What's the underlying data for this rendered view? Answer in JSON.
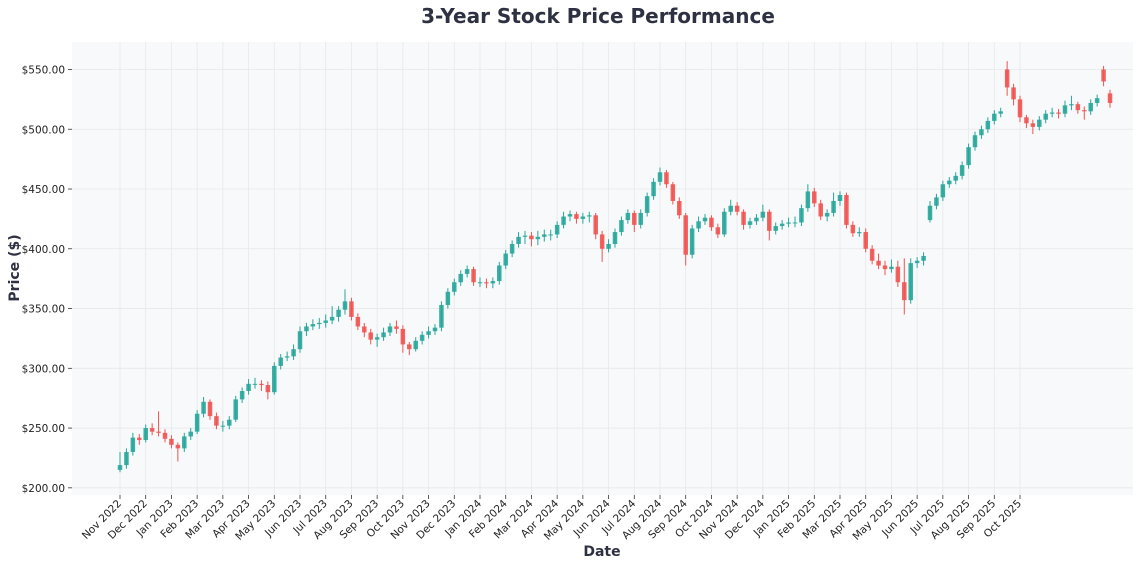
{
  "chart_data": {
    "type": "candlestick",
    "title": "3-Year Stock Price Performance",
    "xlabel": "Date",
    "ylabel": "Price ($)",
    "ylim": [
      194,
      573
    ],
    "grid": true,
    "colors": {
      "up": "#26a69a",
      "down": "#ef5350",
      "plot_bg": "#f8f9fa",
      "title": "#2d3142"
    },
    "y_ticks": [
      {
        "value": 200,
        "label": "$200.00"
      },
      {
        "value": 250,
        "label": "$250.00"
      },
      {
        "value": 300,
        "label": "$300.00"
      },
      {
        "value": 350,
        "label": "$350.00"
      },
      {
        "value": 400,
        "label": "$400.00"
      },
      {
        "value": 450,
        "label": "$450.00"
      },
      {
        "value": 500,
        "label": "$500.00"
      },
      {
        "value": 550,
        "label": "$550.00"
      }
    ],
    "x_ticks": [
      "Nov 2022",
      "Dec 2022",
      "Jan 2023",
      "Feb 2023",
      "Mar 2023",
      "Apr 2023",
      "May 2023",
      "Jun 2023",
      "Jul 2023",
      "Aug 2023",
      "Sep 2023",
      "Oct 2023",
      "Nov 2023",
      "Dec 2023",
      "Jan 2024",
      "Feb 2024",
      "Mar 2024",
      "Apr 2024",
      "May 2024",
      "Jun 2024",
      "Jul 2024",
      "Aug 2024",
      "Sep 2024",
      "Oct 2024",
      "Nov 2024",
      "Dec 2024",
      "Jan 2025",
      "Feb 2025",
      "Mar 2025",
      "Apr 2025",
      "May 2025",
      "Jun 2025",
      "Jul 2025",
      "Aug 2025",
      "Sep 2025",
      "Oct 2025"
    ],
    "candle_fields": [
      "open",
      "high",
      "low",
      "close"
    ],
    "candles": [
      [
        215,
        230,
        213,
        219
      ],
      [
        219,
        233,
        216,
        230
      ],
      [
        230,
        246,
        227,
        242
      ],
      [
        242,
        245,
        236,
        240
      ],
      [
        240,
        253,
        238,
        250
      ],
      [
        250,
        254,
        244,
        247
      ],
      [
        247,
        264,
        243,
        246
      ],
      [
        246,
        249,
        238,
        241
      ],
      [
        241,
        244,
        233,
        236
      ],
      [
        236,
        238,
        222,
        233
      ],
      [
        233,
        246,
        230,
        243
      ],
      [
        243,
        250,
        240,
        247
      ],
      [
        247,
        265,
        245,
        262
      ],
      [
        262,
        276,
        259,
        272
      ],
      [
        272,
        274,
        257,
        260
      ],
      [
        260,
        263,
        249,
        252
      ],
      [
        252,
        256,
        247,
        252
      ],
      [
        252,
        260,
        249,
        257
      ],
      [
        257,
        277,
        255,
        274
      ],
      [
        274,
        284,
        271,
        281
      ],
      [
        281,
        291,
        278,
        287
      ],
      [
        287,
        292,
        283,
        287
      ],
      [
        287,
        290,
        281,
        286
      ],
      [
        286,
        289,
        274,
        280
      ],
      [
        280,
        305,
        278,
        302
      ],
      [
        302,
        312,
        299,
        309
      ],
      [
        309,
        314,
        306,
        310
      ],
      [
        310,
        320,
        307,
        316
      ],
      [
        316,
        335,
        313,
        331
      ],
      [
        331,
        338,
        327,
        335
      ],
      [
        335,
        341,
        332,
        337
      ],
      [
        337,
        342,
        333,
        338
      ],
      [
        338,
        345,
        334,
        340
      ],
      [
        340,
        352,
        337,
        343
      ],
      [
        343,
        352,
        339,
        349
      ],
      [
        349,
        366,
        345,
        356
      ],
      [
        356,
        359,
        340,
        343
      ],
      [
        343,
        346,
        332,
        335
      ],
      [
        335,
        338,
        326,
        330
      ],
      [
        330,
        333,
        320,
        324
      ],
      [
        324,
        329,
        318,
        326
      ],
      [
        326,
        334,
        323,
        330
      ],
      [
        330,
        338,
        327,
        335
      ],
      [
        335,
        340,
        329,
        333
      ],
      [
        333,
        336,
        313,
        320
      ],
      [
        320,
        322,
        311,
        316
      ],
      [
        316,
        326,
        314,
        323
      ],
      [
        323,
        331,
        320,
        328
      ],
      [
        328,
        335,
        325,
        331
      ],
      [
        331,
        337,
        328,
        334
      ],
      [
        334,
        356,
        331,
        353
      ],
      [
        353,
        367,
        350,
        364
      ],
      [
        364,
        375,
        361,
        372
      ],
      [
        372,
        382,
        369,
        379
      ],
      [
        379,
        386,
        376,
        383
      ],
      [
        383,
        385,
        369,
        372
      ],
      [
        372,
        376,
        368,
        372
      ],
      [
        372,
        375,
        367,
        371
      ],
      [
        371,
        376,
        367,
        373
      ],
      [
        373,
        389,
        370,
        386
      ],
      [
        386,
        399,
        383,
        396
      ],
      [
        396,
        407,
        393,
        404
      ],
      [
        404,
        414,
        401,
        410
      ],
      [
        410,
        415,
        404,
        411
      ],
      [
        411,
        414,
        402,
        408
      ],
      [
        408,
        415,
        403,
        410
      ],
      [
        410,
        416,
        406,
        412
      ],
      [
        412,
        416,
        407,
        412
      ],
      [
        412,
        423,
        409,
        420
      ],
      [
        420,
        431,
        417,
        427
      ],
      [
        427,
        432,
        423,
        429
      ],
      [
        429,
        431,
        421,
        425
      ],
      [
        425,
        430,
        421,
        427
      ],
      [
        427,
        431,
        422,
        428
      ],
      [
        428,
        430,
        408,
        412
      ],
      [
        412,
        415,
        389,
        400
      ],
      [
        400,
        408,
        397,
        404
      ],
      [
        404,
        417,
        401,
        414
      ],
      [
        414,
        427,
        411,
        424
      ],
      [
        424,
        433,
        421,
        430
      ],
      [
        430,
        432,
        414,
        420
      ],
      [
        420,
        433,
        417,
        430
      ],
      [
        430,
        447,
        427,
        444
      ],
      [
        444,
        459,
        441,
        456
      ],
      [
        456,
        468,
        453,
        464
      ],
      [
        464,
        466,
        451,
        454
      ],
      [
        454,
        456,
        437,
        440
      ],
      [
        440,
        443,
        425,
        428
      ],
      [
        428,
        430,
        386,
        395
      ],
      [
        395,
        420,
        392,
        417
      ],
      [
        417,
        427,
        414,
        423
      ],
      [
        423,
        429,
        420,
        426
      ],
      [
        426,
        428,
        415,
        418
      ],
      [
        418,
        421,
        409,
        412
      ],
      [
        412,
        434,
        410,
        431
      ],
      [
        431,
        441,
        428,
        436
      ],
      [
        436,
        439,
        428,
        431
      ],
      [
        431,
        433,
        416,
        420
      ],
      [
        420,
        426,
        417,
        423
      ],
      [
        423,
        429,
        420,
        426
      ],
      [
        426,
        437,
        423,
        431
      ],
      [
        431,
        433,
        407,
        415
      ],
      [
        415,
        422,
        412,
        419
      ],
      [
        419,
        424,
        416,
        421
      ],
      [
        421,
        426,
        418,
        422
      ],
      [
        422,
        427,
        418,
        422
      ],
      [
        422,
        437,
        419,
        434
      ],
      [
        434,
        454,
        431,
        448
      ],
      [
        448,
        451,
        435,
        438
      ],
      [
        438,
        441,
        424,
        427
      ],
      [
        427,
        433,
        423,
        430
      ],
      [
        430,
        447,
        427,
        440
      ],
      [
        440,
        448,
        436,
        445
      ],
      [
        445,
        447,
        417,
        420
      ],
      [
        420,
        423,
        410,
        413
      ],
      [
        413,
        418,
        410,
        414
      ],
      [
        414,
        417,
        397,
        400
      ],
      [
        400,
        403,
        387,
        390
      ],
      [
        390,
        396,
        383,
        386
      ],
      [
        386,
        390,
        378,
        383
      ],
      [
        383,
        391,
        380,
        385
      ],
      [
        385,
        390,
        368,
        372
      ],
      [
        372,
        392,
        345,
        357
      ],
      [
        357,
        392,
        354,
        388
      ],
      [
        388,
        393,
        384,
        390
      ],
      [
        390,
        397,
        386,
        394
      ],
      [
        424,
        440,
        422,
        436
      ],
      [
        436,
        446,
        433,
        443
      ],
      [
        443,
        457,
        440,
        454
      ],
      [
        454,
        460,
        451,
        457
      ],
      [
        457,
        464,
        454,
        461
      ],
      [
        461,
        473,
        458,
        470
      ],
      [
        470,
        488,
        467,
        485
      ],
      [
        485,
        498,
        482,
        495
      ],
      [
        495,
        503,
        492,
        500
      ],
      [
        500,
        510,
        497,
        507
      ],
      [
        507,
        516,
        504,
        513
      ],
      [
        513,
        518,
        510,
        515
      ],
      [
        550,
        557,
        528,
        535
      ],
      [
        535,
        538,
        520,
        525
      ],
      [
        525,
        528,
        506,
        510
      ],
      [
        510,
        512,
        501,
        505
      ],
      [
        505,
        508,
        496,
        502
      ],
      [
        502,
        511,
        499,
        508
      ],
      [
        508,
        516,
        505,
        513
      ],
      [
        513,
        518,
        510,
        514
      ],
      [
        514,
        517,
        509,
        513
      ],
      [
        513,
        524,
        510,
        520
      ],
      [
        520,
        528,
        516,
        521
      ],
      [
        521,
        523,
        513,
        516
      ],
      [
        516,
        519,
        508,
        515
      ],
      [
        515,
        525,
        512,
        522
      ],
      [
        522,
        529,
        519,
        526
      ],
      [
        550,
        553,
        536,
        540
      ],
      [
        530,
        533,
        518,
        522
      ]
    ]
  }
}
